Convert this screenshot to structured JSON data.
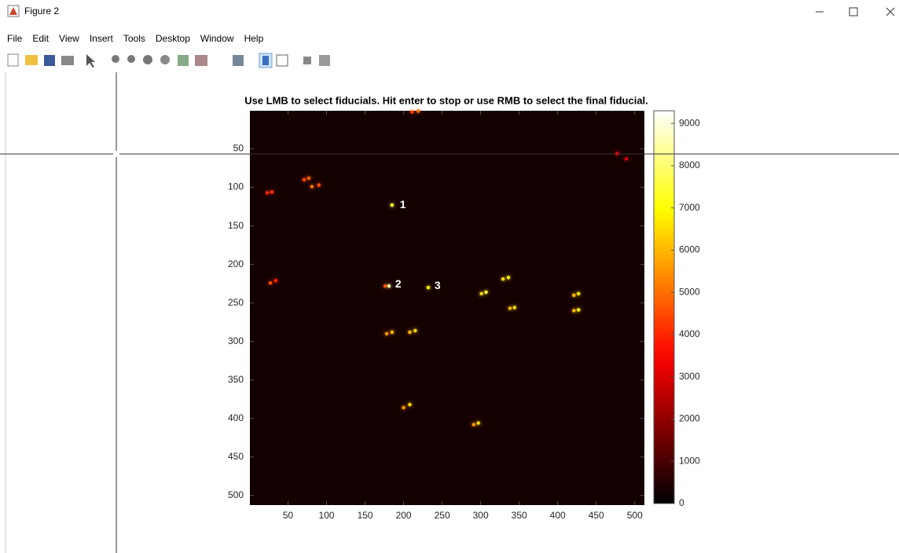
{
  "window": {
    "title": "Figure 2",
    "menu": [
      "File",
      "Edit",
      "View",
      "Insert",
      "Tools",
      "Desktop",
      "Window",
      "Help"
    ]
  },
  "chart_data": {
    "type": "image",
    "title": "Use LMB to select fiducials. Hit enter to stop or use RMB to select the final fiducial.",
    "x": [
      211,
      219,
      477,
      489,
      23,
      29,
      71,
      77,
      81,
      90,
      185,
      27,
      34,
      176,
      181,
      232,
      301,
      307,
      329,
      336,
      338,
      344,
      421,
      427,
      421,
      427,
      178,
      185,
      208,
      215,
      200,
      208,
      291,
      297
    ],
    "y": [
      2,
      1,
      56,
      63,
      107,
      106,
      90,
      88,
      99,
      97,
      123,
      224,
      221,
      228,
      228,
      230,
      238,
      236,
      219,
      217,
      257,
      256,
      240,
      238,
      260,
      259,
      290,
      288,
      288,
      286,
      386,
      382,
      408,
      406
    ],
    "values": [
      4500,
      5000,
      3500,
      3000,
      4000,
      4200,
      4500,
      4800,
      5000,
      4500,
      7500,
      4500,
      4000,
      4500,
      8500,
      7000,
      6500,
      7500,
      6500,
      7000,
      6000,
      6500,
      6000,
      6800,
      6000,
      7000,
      5500,
      6000,
      6000,
      6500,
      5500,
      6500,
      5500,
      6500
    ],
    "xlim": [
      0.5,
      512.5
    ],
    "ylim": [
      0.5,
      512.5
    ],
    "y_reversed": true,
    "xticks": [
      50,
      100,
      150,
      200,
      250,
      300,
      350,
      400,
      450,
      500
    ],
    "yticks": [
      50,
      100,
      150,
      200,
      250,
      300,
      350,
      400,
      450,
      500
    ],
    "colormap": "hot",
    "clim": [
      0,
      9300
    ],
    "cticks": [
      0,
      1000,
      2000,
      3000,
      4000,
      5000,
      6000,
      7000,
      8000,
      9000
    ],
    "annotations": [
      {
        "text": "1",
        "x": 195,
        "y": 123
      },
      {
        "text": "2",
        "x": 189,
        "y": 226
      },
      {
        "text": "3",
        "x": 240,
        "y": 228
      }
    ]
  }
}
